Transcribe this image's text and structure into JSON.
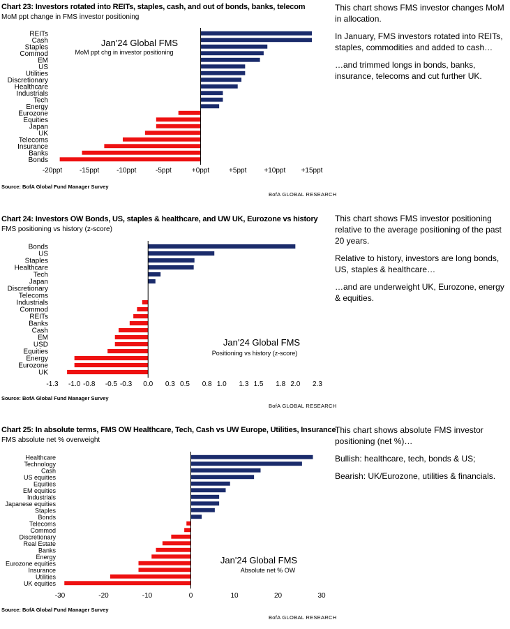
{
  "charts": [
    {
      "title": "Chart 23: Investors rotated into REITs, staples, cash, and out of bonds, banks, telecom",
      "subtitle": "MoM ppt change in FMS investor positioning",
      "annotation_title": "Jan'24 Global FMS",
      "annotation_sub": "MoM ppt chg in investor positioning",
      "source": "Source: BofA Global Fund Manager Survey",
      "brand": "BofA GLOBAL RESEARCH",
      "side_text": [
        "This chart shows FMS investor changes MoM in allocation.",
        "In January, FMS investors rotated into REITs, staples, commodities and added to cash…",
        "…and trimmed longs in bonds, banks, insurance, telecoms and cut further UK."
      ]
    },
    {
      "title": "Chart 24: Investors OW Bonds, US, staples & healthcare, and UW UK, Eurozone vs history",
      "subtitle": "FMS positioning vs history (z-score)",
      "annotation_title": "Jan'24 Global FMS",
      "annotation_sub": "Positioning vs history (z-score)",
      "source": "Source: BofA Global Fund Manager Survey",
      "brand": "BofA GLOBAL RESEARCH",
      "side_text": [
        "This chart shows FMS investor positioning relative to the average positioning of the past 20 years.",
        "Relative to history, investors are long bonds, US, staples & healthcare…",
        "…and are underweight UK, Eurozone, energy & equities."
      ]
    },
    {
      "title": "Chart 25: In absolute terms, FMS OW Healthcare, Tech, Cash vs UW Europe, Utilities, Insurance",
      "subtitle": "FMS absolute net % overweight",
      "annotation_title": "Jan'24 Global FMS",
      "annotation_sub": "Absolute net % OW",
      "source": "Source: BofA Global Fund Manager Survey",
      "brand": "BofA GLOBAL RESEARCH",
      "side_text": [
        "This chart shows absolute FMS investor positioning (net %)…",
        "Bullish: healthcare, tech, bonds & US;",
        "Bearish: UK/Eurozone, utilities & financials."
      ]
    }
  ],
  "colors": {
    "positive": "#1a2b6b",
    "negative": "#ee1111",
    "axis": "#000000"
  },
  "chart_data": [
    {
      "type": "bar",
      "orientation": "horizontal",
      "title": "Chart 23: Investors rotated into REITs, staples, cash, and out of bonds, banks, telecom",
      "ylabel": "MoM ppt change in FMS investor positioning",
      "categories": [
        "REITs",
        "Cash",
        "Staples",
        "Commod",
        "EM",
        "US",
        "Utilities",
        "Discretionary",
        "Healthcare",
        "Industrials",
        "Tech",
        "Energy",
        "Eurozone",
        "Equities",
        "Japan",
        "UK",
        "Telecoms",
        "Insurance",
        "Banks",
        "Bonds"
      ],
      "values": [
        15,
        15,
        9,
        8.5,
        8,
        6,
        6,
        5.5,
        5,
        3,
        3,
        2.5,
        -3,
        -6,
        -6,
        -7.5,
        -10.5,
        -13,
        -16,
        -19
      ],
      "xlim": [
        -20,
        15
      ],
      "xticks": [
        -20,
        -15,
        -10,
        -5,
        0,
        5,
        10,
        15
      ],
      "tick_labels": [
        "-20ppt",
        "-15ppt",
        "-10ppt",
        "-5ppt",
        "+0ppt",
        "+5ppt",
        "+10ppt",
        "+15ppt"
      ],
      "grid": false,
      "legend": "none"
    },
    {
      "type": "bar",
      "orientation": "horizontal",
      "title": "Chart 24: Investors OW Bonds, US, staples & healthcare, and UW UK, Eurozone vs history",
      "ylabel": "FMS positioning vs history (z-score)",
      "categories": [
        "Bonds",
        "US",
        "Staples",
        "Healthcare",
        "Tech",
        "Japan",
        "Discretionary",
        "Telecoms",
        "Industrials",
        "Commod",
        "REITs",
        "Banks",
        "Cash",
        "EM",
        "USD",
        "Equities",
        "Energy",
        "Eurozone",
        "UK"
      ],
      "values": [
        2.0,
        0.9,
        0.63,
        0.62,
        0.17,
        0.1,
        0.0,
        0.0,
        -0.08,
        -0.15,
        -0.2,
        -0.25,
        -0.4,
        -0.45,
        -0.45,
        -0.55,
        -1.0,
        -1.0,
        -1.1
      ],
      "xlim": [
        -1.3,
        2.3
      ],
      "xticks": [
        -1.3,
        -1.0,
        -0.8,
        -0.5,
        -0.3,
        0.0,
        0.3,
        0.5,
        0.8,
        1.0,
        1.3,
        1.5,
        1.8,
        2.0,
        2.3
      ],
      "tick_labels": [
        "-1.3",
        "-1.0",
        "-0.8",
        "-0.5",
        "-0.3",
        "0.0",
        "0.3",
        "0.5",
        "0.8",
        "1.0",
        "1.3",
        "1.5",
        "1.8",
        "2.0",
        "2.3"
      ],
      "grid": false,
      "legend": "none"
    },
    {
      "type": "bar",
      "orientation": "horizontal",
      "title": "Chart 25: In absolute terms, FMS OW Healthcare, Tech, Cash vs UW Europe, Utilities, Insurance",
      "ylabel": "FMS absolute net % overweight",
      "categories": [
        "Healthcare",
        "Technology",
        "Cash",
        "US equities",
        "Equities",
        "EM equities",
        "Industrials",
        "Japanese equities",
        "Staples",
        "Bonds",
        "Telecoms",
        "Commod",
        "Discretionary",
        "Real Estate",
        "Banks",
        "Energy",
        "Eurozone equities",
        "Insurance",
        "Utilities",
        "UK equities"
      ],
      "values": [
        28,
        25.5,
        16,
        14.5,
        9,
        8,
        6.5,
        6.5,
        5.5,
        2.5,
        -1,
        -1.5,
        -4.5,
        -6.5,
        -8,
        -9,
        -12,
        -12,
        -18.5,
        -29
      ],
      "xlim": [
        -30,
        30
      ],
      "xticks": [
        -30,
        -20,
        -10,
        0,
        10,
        20,
        30
      ],
      "tick_labels": [
        "-30",
        "-20",
        "-10",
        "0",
        "10",
        "20",
        "30"
      ],
      "grid": false,
      "legend": "none"
    }
  ]
}
